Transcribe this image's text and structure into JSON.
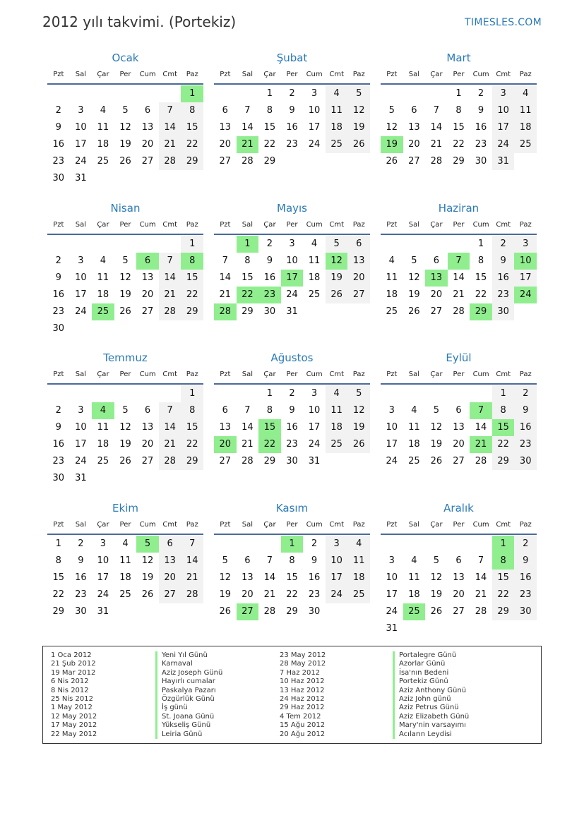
{
  "header": {
    "title": "2012 yılı takvimi. (Portekiz)",
    "brand": "TIMESLES.COM"
  },
  "year": 2012,
  "colors": {
    "accent": "#2a7ab8",
    "holiday": "#90ee8f",
    "weekend": "#f2f2f2"
  },
  "weekdays": [
    "Pzt",
    "Sal",
    "Çar",
    "Per",
    "Cum",
    "Cmt",
    "Paz"
  ],
  "months": [
    {
      "name": "Ocak",
      "holidays": [
        1
      ]
    },
    {
      "name": "Şubat",
      "holidays": [
        21
      ]
    },
    {
      "name": "Mart",
      "holidays": [
        19
      ]
    },
    {
      "name": "Nisan",
      "holidays": [
        6,
        8,
        25
      ]
    },
    {
      "name": "Mayıs",
      "holidays": [
        1,
        12,
        17,
        22,
        23,
        28
      ]
    },
    {
      "name": "Haziran",
      "holidays": [
        7,
        10,
        13,
        24,
        29
      ]
    },
    {
      "name": "Temmuz",
      "holidays": [
        4
      ]
    },
    {
      "name": "Ağustos",
      "holidays": [
        15,
        20,
        22
      ]
    },
    {
      "name": "Eylül",
      "holidays": [
        7,
        15,
        21
      ]
    },
    {
      "name": "Ekim",
      "holidays": [
        5
      ]
    },
    {
      "name": "Kasım",
      "holidays": [
        1,
        27
      ]
    },
    {
      "name": "Aralık",
      "holidays": [
        1,
        8,
        25
      ]
    }
  ],
  "holiday_list": [
    {
      "date": "1 Oca 2012",
      "name": "Yeni Yıl Günü"
    },
    {
      "date": "21 Şub 2012",
      "name": "Karnaval"
    },
    {
      "date": "19 Mar 2012",
      "name": "Aziz Joseph Günü"
    },
    {
      "date": "6 Nis 2012",
      "name": "Hayırlı cumalar"
    },
    {
      "date": "8 Nis 2012",
      "name": "Paskalya Pazarı"
    },
    {
      "date": "25 Nis 2012",
      "name": "Özgürlük Günü"
    },
    {
      "date": "1 May 2012",
      "name": "İş günü"
    },
    {
      "date": "12 May 2012",
      "name": "St. Joana Günü"
    },
    {
      "date": "17 May 2012",
      "name": "Yükseliş Günü"
    },
    {
      "date": "22 May 2012",
      "name": "Leiria Günü"
    },
    {
      "date": "23 May 2012",
      "name": "Portalegre Günü"
    },
    {
      "date": "28 May 2012",
      "name": "Azorlar Günü"
    },
    {
      "date": "7 Haz 2012",
      "name": "İsa'nın Bedeni"
    },
    {
      "date": "10 Haz 2012",
      "name": "Portekiz Günü"
    },
    {
      "date": "13 Haz 2012",
      "name": "Aziz Anthony Günü"
    },
    {
      "date": "24 Haz 2012",
      "name": "Aziz John günü"
    },
    {
      "date": "29 Haz 2012",
      "name": "Aziz Petrus Günü"
    },
    {
      "date": "4 Tem 2012",
      "name": "Aziz Elizabeth Günü"
    },
    {
      "date": "15 Ağu 2012",
      "name": "Mary'nin varsayımı"
    },
    {
      "date": "20 Ağu 2012",
      "name": "Acıların Leydisi"
    }
  ]
}
